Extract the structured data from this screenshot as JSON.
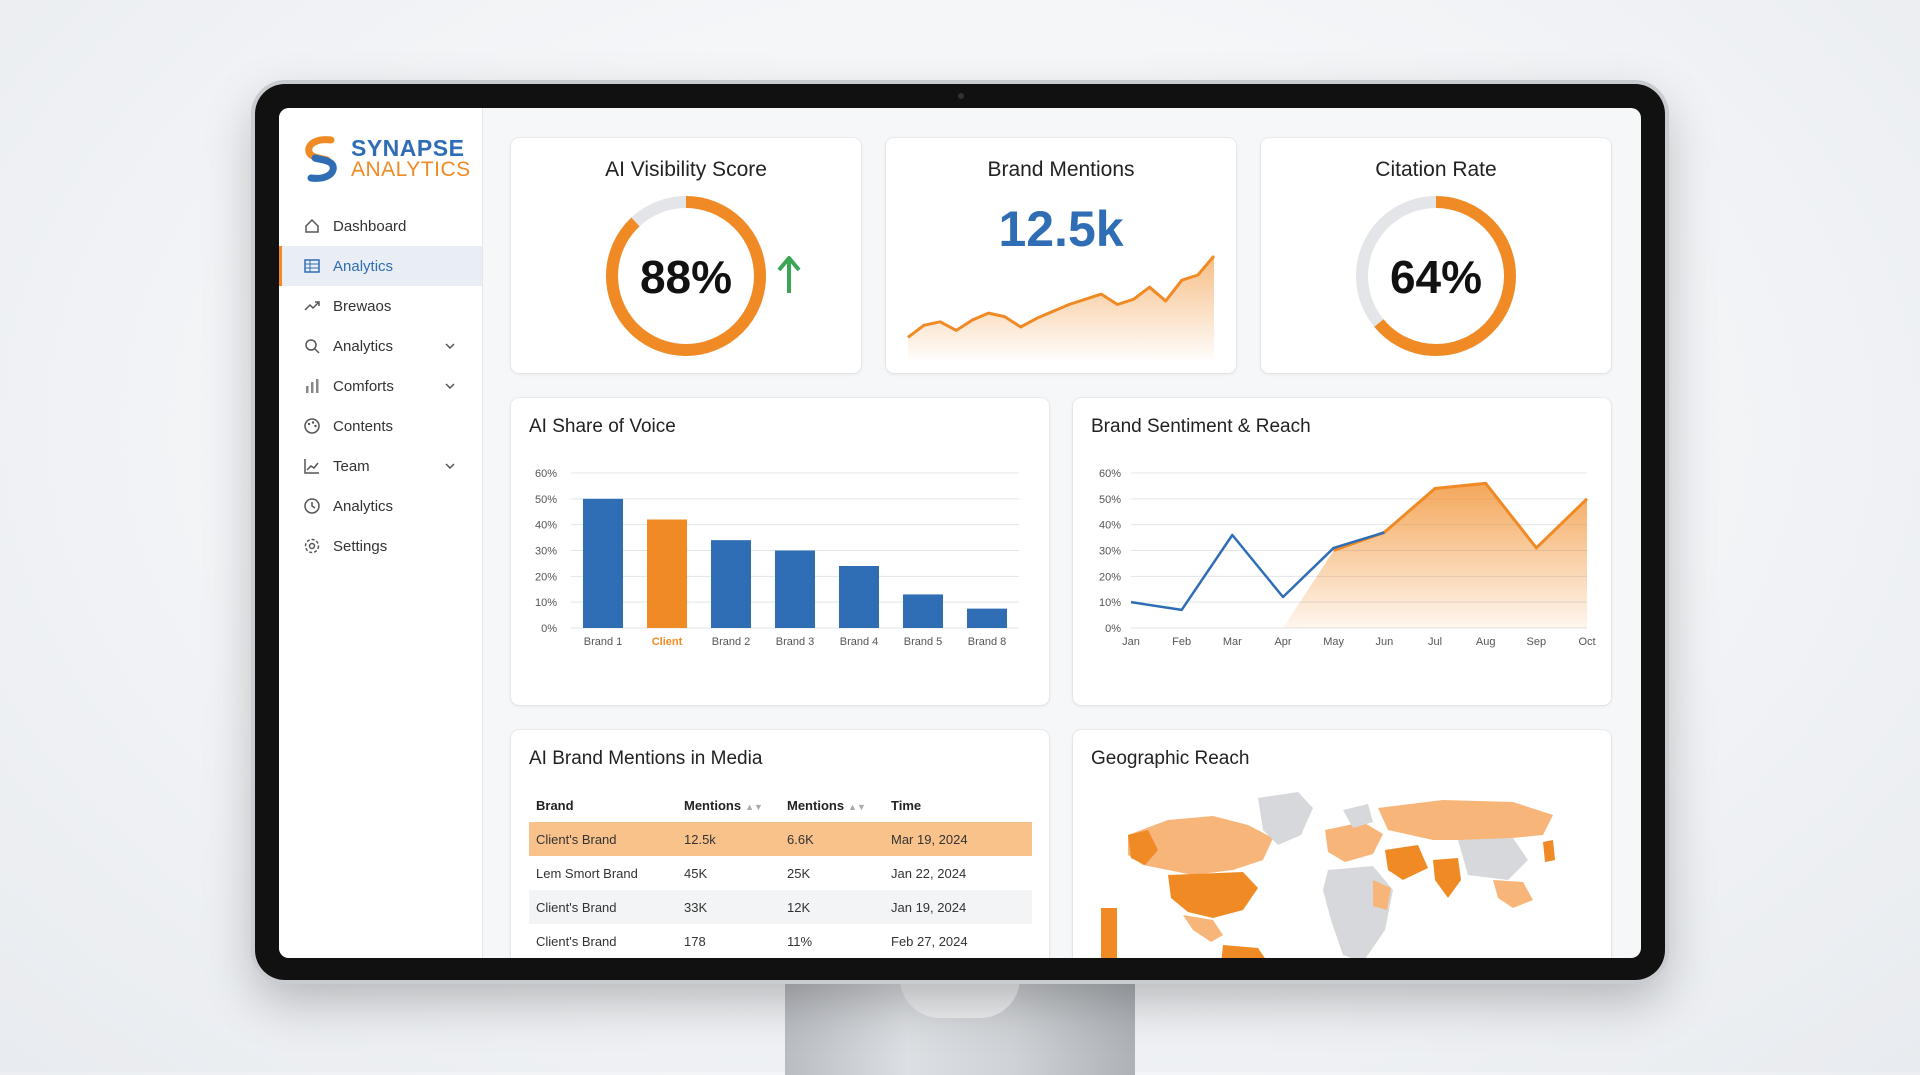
{
  "brand": {
    "line1": "SYNAPSE",
    "line2": "ANALYTICS"
  },
  "colors": {
    "blue": "#2f6db4",
    "orange": "#f08a24",
    "green": "#3aa655"
  },
  "sidebar": {
    "items": [
      {
        "label": "Dashboard",
        "icon": "home-icon",
        "active": false,
        "chevron": false
      },
      {
        "label": "Analytics",
        "icon": "table-icon",
        "active": true,
        "chevron": false
      },
      {
        "label": "Brewaos",
        "icon": "trend-icon",
        "active": false,
        "chevron": false
      },
      {
        "label": "Analytics",
        "icon": "search-icon",
        "active": false,
        "chevron": true
      },
      {
        "label": "Comforts",
        "icon": "bar-chart-icon",
        "active": false,
        "chevron": true
      },
      {
        "label": "Contents",
        "icon": "palette-icon",
        "active": false,
        "chevron": false
      },
      {
        "label": "Team",
        "icon": "line-chart-icon",
        "active": false,
        "chevron": true
      },
      {
        "label": "Analytics",
        "icon": "clock-icon",
        "active": false,
        "chevron": false
      },
      {
        "label": "Settings",
        "icon": "gear-icon",
        "active": false,
        "chevron": false
      }
    ]
  },
  "kpis": {
    "visibility": {
      "title": "AI Visibility Score",
      "value": "88%",
      "fraction": 0.88,
      "trend": "up-arrow-icon"
    },
    "mentions": {
      "title": "Brand Mentions",
      "value": "12.5k"
    },
    "citation": {
      "title": "Citation Rate",
      "value": "64%",
      "fraction": 0.64
    }
  },
  "share_of_voice": {
    "title": "AI Share of Voice"
  },
  "sentiment": {
    "title": "Brand Sentiment & Reach"
  },
  "media": {
    "title": "AI Brand Mentions in Media",
    "columns": [
      "Brand",
      "Mentions",
      "Mentions",
      "Time"
    ],
    "rows": [
      [
        "Client's Brand",
        "12.5k",
        "6.6K",
        "Mar 19, 2024"
      ],
      [
        "Lem Smort Brand",
        "45K",
        "25K",
        "Jan 22, 2024"
      ],
      [
        "Client's Brand",
        "33K",
        "12K",
        "Jan 19, 2024"
      ],
      [
        "Client's Brand",
        "178",
        "11%",
        "Feb 27, 2024"
      ]
    ]
  },
  "geo": {
    "title": "Geographic Reach"
  },
  "chart_data": [
    {
      "type": "area",
      "title": "Brand Mentions",
      "x": [
        1,
        2,
        3,
        4,
        5,
        6,
        7,
        8,
        9,
        10,
        11,
        12,
        13,
        14,
        15,
        16,
        17,
        18,
        19,
        20
      ],
      "values": [
        5,
        12,
        14,
        9,
        15,
        19,
        17,
        11,
        16,
        20,
        24,
        27,
        30,
        24,
        27,
        34,
        26,
        38,
        41,
        52
      ],
      "color": "#f08a24"
    },
    {
      "type": "bar",
      "title": "AI Share of Voice",
      "categories": [
        "Brand 1",
        "Client",
        "Brand 2",
        "Brand 3",
        "Brand 4",
        "Brand 5",
        "Brand 8"
      ],
      "values": [
        50,
        42,
        34,
        30,
        24,
        13,
        7.5
      ],
      "highlight": "Client",
      "yticks": [
        "0%",
        "10%",
        "20%",
        "30%",
        "40%",
        "50%",
        "60%"
      ],
      "ylim": [
        0,
        60
      ],
      "grid": true
    },
    {
      "type": "area",
      "title": "Brand Sentiment & Reach",
      "categories": [
        "Jan",
        "Feb",
        "Mar",
        "Apr",
        "May",
        "Jun",
        "Jul",
        "Aug",
        "Sep",
        "Oct"
      ],
      "series": [
        {
          "values": [
            10,
            7,
            36,
            12,
            31,
            37,
            54,
            56,
            31,
            50
          ],
          "color": "#2f6db4"
        }
      ],
      "area_values": [
        0,
        0,
        0,
        0,
        30,
        37,
        54,
        56,
        31,
        50
      ],
      "yticks": [
        "0%",
        "10%",
        "20%",
        "30%",
        "40%",
        "50%",
        "60%"
      ],
      "ylim": [
        0,
        60
      ],
      "grid": true
    }
  ]
}
